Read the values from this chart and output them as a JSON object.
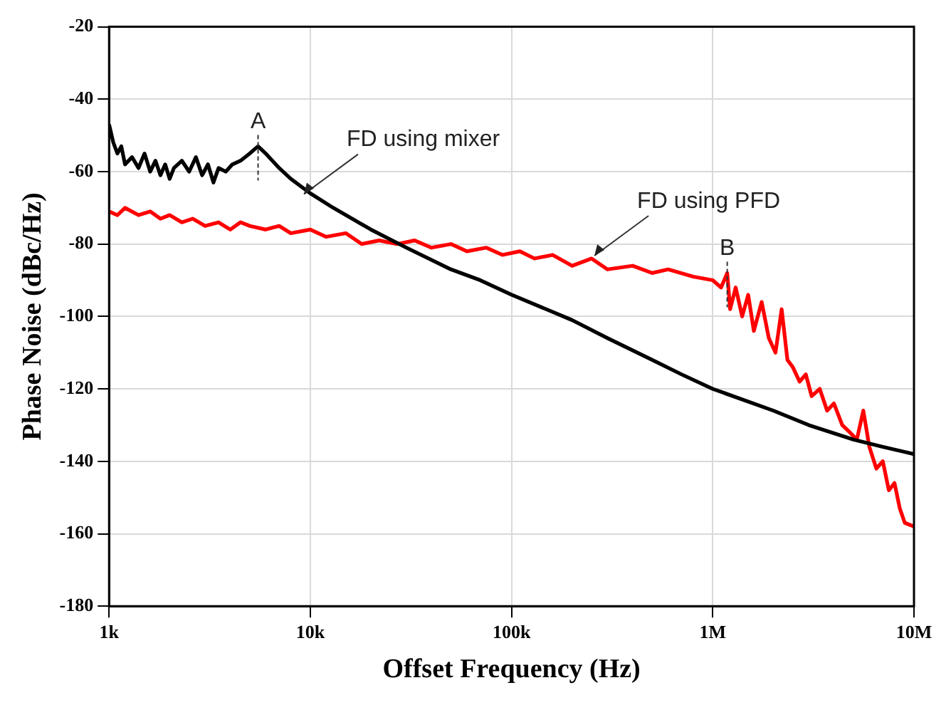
{
  "chart_data": {
    "type": "line",
    "xlabel": "Offset Frequency (Hz)",
    "ylabel": "Phase Noise (dBc/Hz)",
    "log": "x",
    "grid": true,
    "legend": false,
    "marker": "none",
    "line_style": "solid",
    "xlim": [
      1000,
      10000000
    ],
    "xticks": [
      {
        "value": 1000,
        "label": "1k"
      },
      {
        "value": 10000,
        "label": "10k"
      },
      {
        "value": 100000,
        "label": "100k"
      },
      {
        "value": 1000000,
        "label": "1M"
      },
      {
        "value": 10000000,
        "label": "10M"
      }
    ],
    "ylim": [
      -180,
      -20
    ],
    "yticks": [
      -180,
      -160,
      -140,
      -120,
      -100,
      -80,
      -60,
      -40,
      -20
    ],
    "annotations": [
      {
        "text": "A",
        "x": 5500,
        "y": -53
      },
      {
        "text": "B",
        "x": 1180000,
        "y": -88
      },
      {
        "text": "FD using mixer",
        "x": 9000,
        "y": -67
      },
      {
        "text": "FD using PFD",
        "x": 250000,
        "y": -84
      }
    ],
    "series": [
      {
        "color": "#000000",
        "x": [
          1000,
          1050,
          1100,
          1150,
          1200,
          1300,
          1400,
          1500,
          1600,
          1700,
          1800,
          1900,
          2000,
          2100,
          2300,
          2500,
          2700,
          2900,
          3100,
          3300,
          3500,
          3800,
          4100,
          4500,
          5000,
          5500,
          6000,
          7000,
          8000,
          10000,
          13000,
          20000,
          30000,
          50000,
          70000,
          100000,
          200000,
          300000,
          500000,
          700000,
          1000000,
          2000000,
          3000000,
          5000000,
          7000000,
          10000000
        ],
        "values": [
          -47,
          -52,
          -55,
          -53,
          -58,
          -56,
          -59,
          -55,
          -60,
          -57,
          -61,
          -58,
          -62,
          -59,
          -57,
          -60,
          -56,
          -61,
          -58,
          -63,
          -59,
          -60,
          -58,
          -57,
          -55,
          -53,
          -55,
          -59,
          -62,
          -66,
          -70,
          -76,
          -81,
          -87,
          -90,
          -94,
          -101,
          -106,
          -112,
          -116,
          -120,
          -126,
          -130,
          -134,
          -136,
          -138
        ]
      },
      {
        "color": "#ff0000",
        "x": [
          1000,
          1100,
          1200,
          1400,
          1600,
          1800,
          2000,
          2300,
          2600,
          3000,
          3500,
          4000,
          4500,
          5000,
          6000,
          7000,
          8000,
          10000,
          12000,
          15000,
          18000,
          22000,
          27000,
          33000,
          40000,
          50000,
          60000,
          75000,
          90000,
          110000,
          130000,
          160000,
          200000,
          250000,
          300000,
          400000,
          500000,
          600000,
          800000,
          1000000,
          1100000,
          1180000,
          1220000,
          1300000,
          1400000,
          1500000,
          1600000,
          1750000,
          1900000,
          2050000,
          2200000,
          2350000,
          2500000,
          2700000,
          2900000,
          3100000,
          3400000,
          3700000,
          4000000,
          4400000,
          4800000,
          5200000,
          5600000,
          6000000,
          6500000,
          7000000,
          7500000,
          8000000,
          8500000,
          9000000,
          10000000
        ],
        "values": [
          -71,
          -72,
          -70,
          -72,
          -71,
          -73,
          -72,
          -74,
          -73,
          -75,
          -74,
          -76,
          -74,
          -75,
          -76,
          -75,
          -77,
          -76,
          -78,
          -77,
          -80,
          -79,
          -80,
          -79,
          -81,
          -80,
          -82,
          -81,
          -83,
          -82,
          -84,
          -83,
          -86,
          -84,
          -87,
          -86,
          -88,
          -87,
          -89,
          -90,
          -92,
          -88,
          -98,
          -92,
          -100,
          -94,
          -104,
          -96,
          -106,
          -110,
          -98,
          -112,
          -114,
          -118,
          -116,
          -122,
          -120,
          -126,
          -124,
          -130,
          -132,
          -134,
          -126,
          -136,
          -142,
          -140,
          -148,
          -146,
          -153,
          -157,
          -158
        ]
      }
    ]
  }
}
